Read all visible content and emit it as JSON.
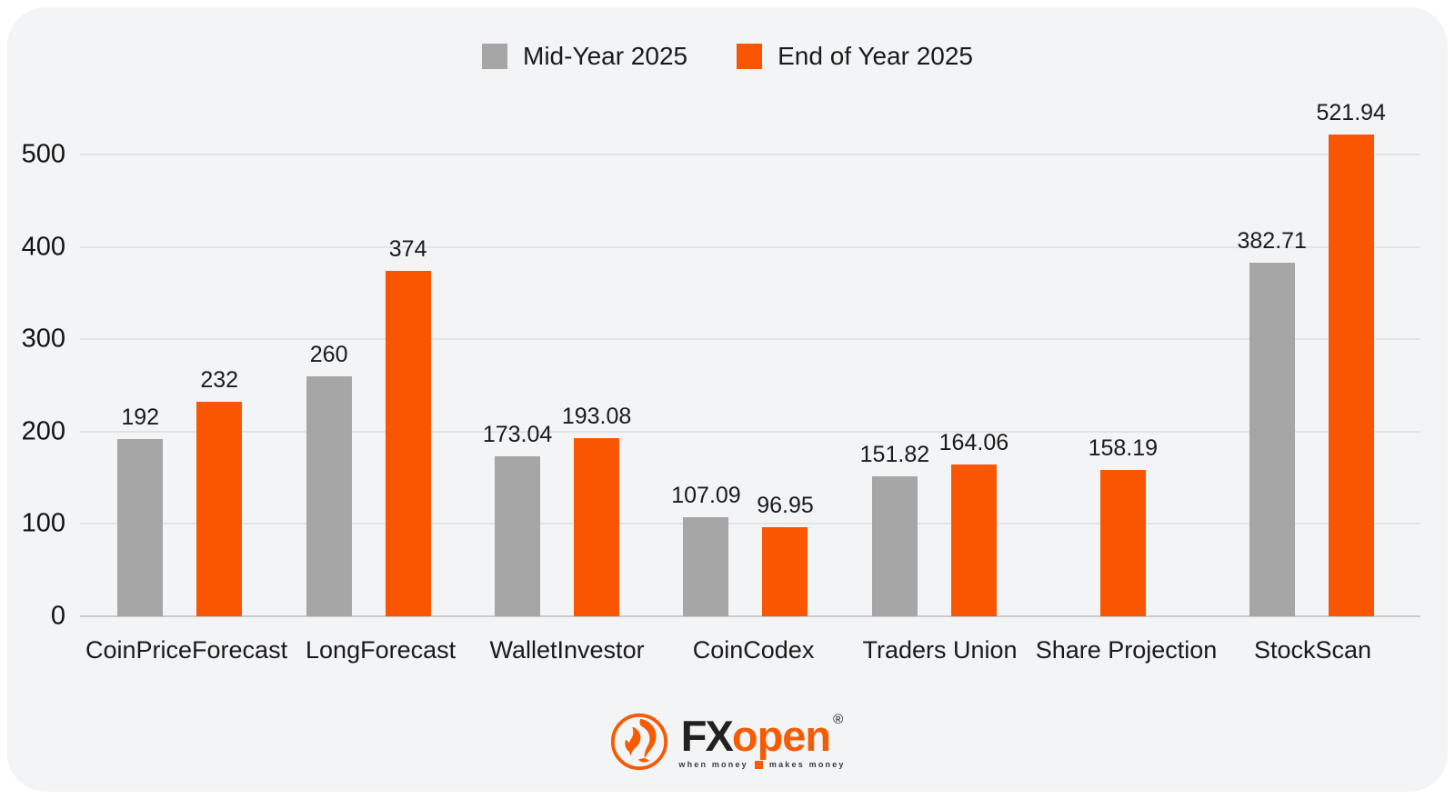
{
  "page": {
    "background": "#ffffff",
    "card_background": "#f3f4f6"
  },
  "colors": {
    "series_gray": "#a6a6a6",
    "series_orange": "#fa5500",
    "gridline": "#e2e3e7",
    "baseline": "#c9cbcf",
    "text": "#1a1a1a",
    "logo_orange": "#f75b02",
    "logo_black": "#232020"
  },
  "chart_data": {
    "type": "bar",
    "title": "",
    "xlabel": "",
    "ylabel": "",
    "categories": [
      "CoinPriceForecast",
      "LongForecast",
      "WalletInvestor",
      "CoinCodex",
      "Traders Union",
      "Share Projection",
      "StockScan"
    ],
    "series": [
      {
        "name": "Mid-Year 2025",
        "color": "#a6a6a6",
        "values": [
          192,
          260,
          173.04,
          107.09,
          151.82,
          null,
          382.71
        ]
      },
      {
        "name": "End of Year 2025",
        "color": "#fa5500",
        "values": [
          232,
          374,
          193.08,
          96.95,
          164.06,
          158.19,
          521.94
        ]
      }
    ],
    "ylim": [
      0,
      500
    ],
    "yticks": [
      0,
      100,
      200,
      300,
      400,
      500
    ],
    "grid": true,
    "value_labels": true,
    "legend_position": "top-center"
  },
  "footer": {
    "brand_fx": "FX",
    "brand_open": "open",
    "registered": "®",
    "tagline_left": "when money",
    "tagline_right": "makes money"
  }
}
